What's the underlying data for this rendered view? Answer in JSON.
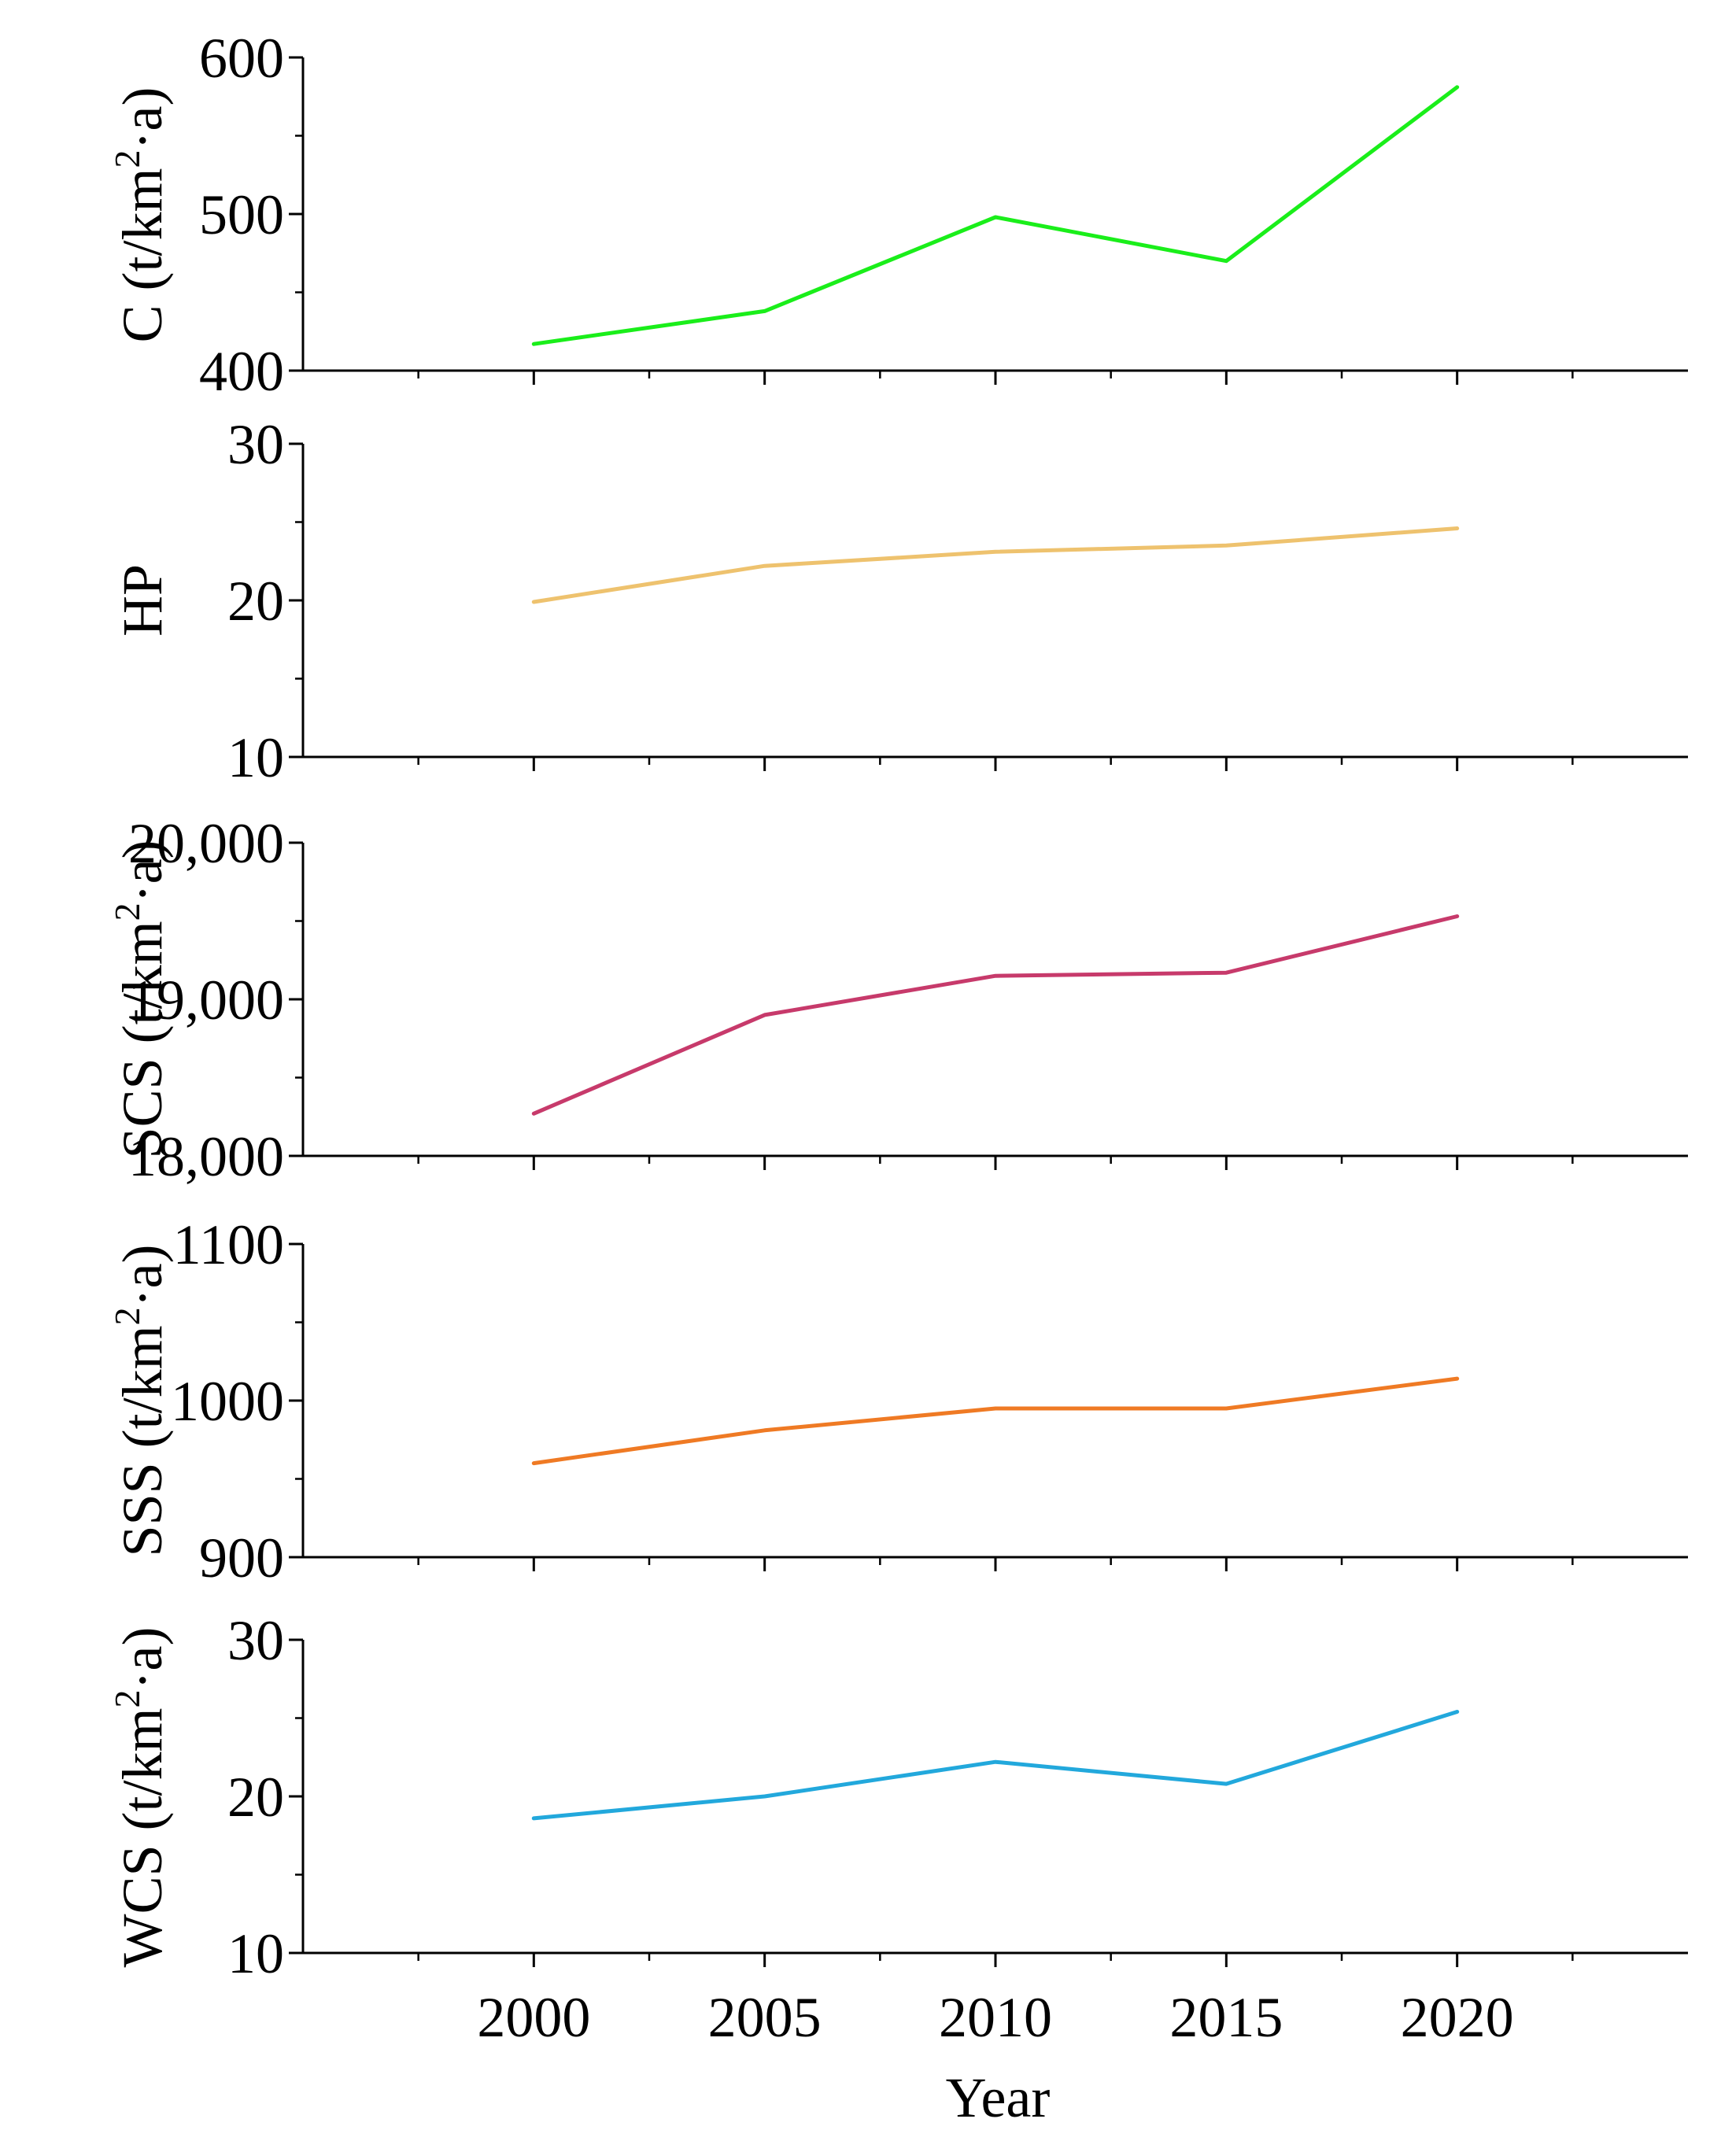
{
  "chart_data": [
    {
      "type": "line",
      "ylabel_parts": [
        "C (t/km",
        "2",
        "·a)"
      ],
      "ylim": [
        400,
        600
      ],
      "yticks": [
        "400",
        "500",
        "600"
      ],
      "ytick_values": [
        400,
        500,
        600
      ],
      "x": [
        2000,
        2005,
        2010,
        2015,
        2020
      ],
      "values": [
        417,
        438,
        498,
        470,
        581
      ],
      "color": "#1aee1a"
    },
    {
      "type": "line",
      "ylabel_parts": [
        "HP"
      ],
      "ylim": [
        10,
        30
      ],
      "yticks": [
        "10",
        "20",
        "30"
      ],
      "ytick_values": [
        10,
        20,
        30
      ],
      "x": [
        2000,
        2005,
        2010,
        2015,
        2020
      ],
      "values": [
        19.9,
        22.2,
        23.1,
        23.5,
        24.6
      ],
      "color": "#eec26e"
    },
    {
      "type": "line",
      "ylabel_parts": [
        "SCS (t/km",
        "2",
        "·a)"
      ],
      "ylim": [
        18000,
        20000
      ],
      "yticks": [
        "18,000",
        "19,000",
        "20,000"
      ],
      "ytick_values": [
        18000,
        19000,
        20000
      ],
      "x": [
        2000,
        2005,
        2010,
        2015,
        2020
      ],
      "values": [
        18270,
        18900,
        19150,
        19170,
        19530
      ],
      "color": "#c73a6b"
    },
    {
      "type": "line",
      "ylabel_parts": [
        "SSS (t/km",
        "2",
        "·a)"
      ],
      "ylim": [
        900,
        1100
      ],
      "yticks": [
        "900",
        "1000",
        "1100"
      ],
      "ytick_values": [
        900,
        1000,
        1100
      ],
      "x": [
        2000,
        2005,
        2010,
        2015,
        2020
      ],
      "values": [
        960,
        981,
        995,
        995,
        1014
      ],
      "color": "#ef7a24"
    },
    {
      "type": "line",
      "ylabel_parts": [
        "WCS (t/km",
        "2",
        "·a)"
      ],
      "ylim": [
        10,
        30
      ],
      "yticks": [
        "10",
        "20",
        "30"
      ],
      "ytick_values": [
        10,
        20,
        30
      ],
      "x": [
        2000,
        2005,
        2010,
        2015,
        2020
      ],
      "values": [
        18.6,
        20.0,
        22.2,
        20.8,
        25.4
      ],
      "color": "#22a8dc"
    }
  ],
  "x_axis": {
    "xlabel": "Year",
    "xlim": [
      1995,
      2025
    ],
    "xticks": [
      "2000",
      "2005",
      "2010",
      "2015",
      "2020"
    ],
    "xtick_values": [
      2000,
      2005,
      2010,
      2015,
      2020
    ],
    "minor_xtick_values": [
      1997.5,
      2002.5,
      2007.5,
      2012.5,
      2017.5,
      2022.5
    ]
  }
}
